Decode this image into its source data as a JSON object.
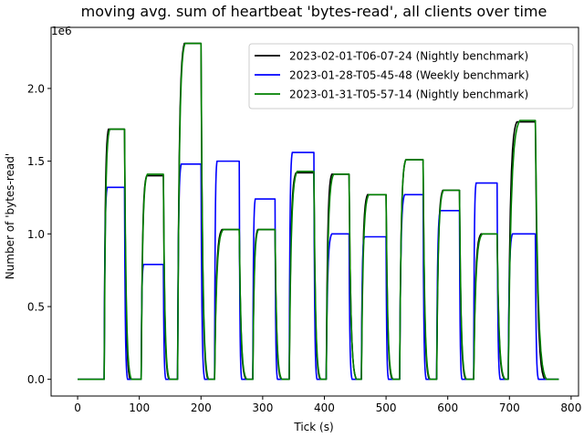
{
  "chart_data": {
    "type": "line",
    "title": "moving avg. sum of heartbeat 'bytes-read', all clients over time",
    "xlabel": "Tick (s)",
    "ylabel": "Number of 'bytes-read'",
    "offset_label": "1e6",
    "xlim": [
      -43,
      812
    ],
    "ylim": [
      -0.115,
      2.42
    ],
    "x_ticks": [
      0,
      100,
      200,
      300,
      400,
      500,
      600,
      700,
      800
    ],
    "x_tick_labels": [
      "0",
      "100",
      "200",
      "300",
      "400",
      "500",
      "600",
      "700",
      "800"
    ],
    "y_ticks": [
      0.0,
      0.5,
      1.0,
      1.5,
      2.0
    ],
    "y_tick_labels": [
      "0.0",
      "0.5",
      "1.0",
      "1.5",
      "2.0"
    ],
    "grid": false,
    "legend_position": "top-right",
    "series": [
      {
        "name": "2023-02-01-T06-07-24 (Nightly benchmark)",
        "color": "#000000",
        "plateaus": [
          [
            43,
            50,
            76,
            85,
            1.72
          ],
          [
            103,
            112,
            139,
            148,
            1.4
          ],
          [
            162,
            173,
            200,
            211,
            2.31
          ],
          [
            222,
            234,
            262,
            273,
            1.03
          ],
          [
            284,
            292,
            320,
            330,
            1.03
          ],
          [
            343,
            354,
            383,
            393,
            1.42
          ],
          [
            403,
            412,
            440,
            452,
            1.41
          ],
          [
            460,
            470,
            500,
            510,
            1.27
          ],
          [
            522,
            532,
            560,
            570,
            1.51
          ],
          [
            582,
            592,
            619,
            629,
            1.3
          ],
          [
            642,
            654,
            680,
            692,
            1.0
          ],
          [
            698,
            712,
            742,
            757,
            1.77
          ]
        ]
      },
      {
        "name": "2023-01-28-T05-45-48 (Weekly benchmark)",
        "color": "#0000ff",
        "plateaus": [
          [
            43,
            48,
            76,
            81,
            1.32
          ],
          [
            103,
            107,
            139,
            143,
            0.79
          ],
          [
            162,
            168,
            200,
            206,
            1.48
          ],
          [
            222,
            226,
            262,
            266,
            1.5
          ],
          [
            284,
            288,
            320,
            324,
            1.24
          ],
          [
            343,
            348,
            383,
            388,
            1.56
          ],
          [
            403,
            412,
            440,
            445,
            1.0
          ],
          [
            460,
            465,
            500,
            504,
            0.98
          ],
          [
            522,
            530,
            560,
            565,
            1.27
          ],
          [
            582,
            588,
            619,
            623,
            1.16
          ],
          [
            642,
            646,
            680,
            685,
            1.35
          ],
          [
            698,
            705,
            742,
            747,
            1.0
          ]
        ]
      },
      {
        "name": "2023-01-31-T05-57-14 (Nightly benchmark)",
        "color": "#008000",
        "plateaus": [
          [
            43,
            52,
            76,
            87,
            1.72
          ],
          [
            103,
            113,
            139,
            149,
            1.41
          ],
          [
            162,
            174,
            200,
            212,
            2.31
          ],
          [
            222,
            236,
            262,
            274,
            1.03
          ],
          [
            284,
            293,
            320,
            331,
            1.03
          ],
          [
            343,
            356,
            383,
            394,
            1.43
          ],
          [
            403,
            415,
            440,
            452,
            1.41
          ],
          [
            460,
            472,
            500,
            511,
            1.27
          ],
          [
            522,
            532,
            560,
            571,
            1.51
          ],
          [
            582,
            593,
            619,
            630,
            1.3
          ],
          [
            642,
            656,
            680,
            693,
            1.0
          ],
          [
            698,
            717,
            742,
            760,
            1.78
          ]
        ]
      }
    ],
    "x_end": 780
  }
}
